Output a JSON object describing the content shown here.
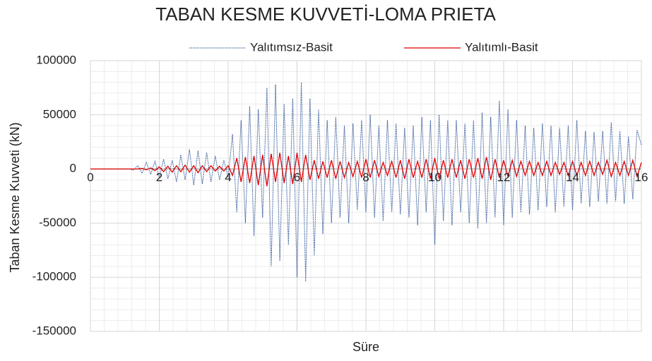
{
  "chart_data": {
    "type": "line",
    "title": "TABAN KESME KUVVETİ-LOMA PRIETA",
    "x_label": "Süre",
    "y_label": "Taban Kesme Kuvveti (kN)",
    "x": [
      0,
      0.125,
      0.25,
      0.375,
      0.5,
      0.625,
      0.75,
      0.875,
      1,
      1.125,
      1.25,
      1.375,
      1.5,
      1.625,
      1.75,
      1.875,
      2,
      2.125,
      2.25,
      2.375,
      2.5,
      2.625,
      2.75,
      2.875,
      3,
      3.125,
      3.25,
      3.375,
      3.5,
      3.625,
      3.75,
      3.875,
      4,
      4.125,
      4.25,
      4.375,
      4.5,
      4.625,
      4.75,
      4.875,
      5,
      5.125,
      5.25,
      5.375,
      5.5,
      5.625,
      5.75,
      5.875,
      6,
      6.125,
      6.25,
      6.375,
      6.5,
      6.625,
      6.75,
      6.875,
      7,
      7.125,
      7.25,
      7.375,
      7.5,
      7.625,
      7.75,
      7.875,
      8,
      8.125,
      8.25,
      8.375,
      8.5,
      8.625,
      8.75,
      8.875,
      9,
      9.125,
      9.25,
      9.375,
      9.5,
      9.625,
      9.75,
      9.875,
      10,
      10.125,
      10.25,
      10.375,
      10.5,
      10.625,
      10.75,
      10.875,
      11,
      11.125,
      11.25,
      11.375,
      11.5,
      11.625,
      11.75,
      11.875,
      12,
      12.125,
      12.25,
      12.375,
      12.5,
      12.625,
      12.75,
      12.875,
      13,
      13.125,
      13.25,
      13.375,
      13.5,
      13.625,
      13.75,
      13.875,
      14,
      14.125,
      14.25,
      14.375,
      14.5,
      14.625,
      14.75,
      14.875,
      15,
      15.125,
      15.25,
      15.375,
      15.5,
      15.625,
      15.75,
      15.875,
      16
    ],
    "series": [
      {
        "name": "Yalıtımsız-Basit",
        "color": "#2e5597",
        "dashed": true,
        "values": [
          0,
          0,
          0,
          0,
          0,
          0,
          0,
          0,
          0,
          0,
          -1000,
          3000,
          -4000,
          6000,
          -5000,
          7000,
          -8000,
          9000,
          -9000,
          8000,
          -12000,
          13000,
          -10000,
          18000,
          -15000,
          17000,
          -14000,
          15000,
          -12000,
          12000,
          -10000,
          8000,
          -8000,
          32000,
          -40000,
          45000,
          -50000,
          58000,
          -62000,
          55000,
          -45000,
          75000,
          -90000,
          78000,
          -85000,
          60000,
          -70000,
          65000,
          -100000,
          80000,
          -104000,
          65000,
          -80000,
          55000,
          -60000,
          45000,
          -50000,
          48000,
          -45000,
          40000,
          -50000,
          42000,
          -38000,
          45000,
          -40000,
          50000,
          -45000,
          40000,
          -48000,
          45000,
          -40000,
          42000,
          -42000,
          38000,
          -45000,
          40000,
          -52000,
          48000,
          -40000,
          45000,
          -70000,
          50000,
          -48000,
          45000,
          -52000,
          45000,
          -40000,
          42000,
          -50000,
          45000,
          -55000,
          52000,
          -50000,
          48000,
          -45000,
          63000,
          -52000,
          55000,
          -45000,
          45000,
          -40000,
          40000,
          -42000,
          38000,
          -38000,
          42000,
          -35000,
          40000,
          -40000,
          38000,
          -35000,
          40000,
          -38000,
          45000,
          -32000,
          35000,
          -35000,
          34000,
          -30000,
          35000,
          -32000,
          43000,
          -30000,
          35000,
          -32000,
          30000,
          -28000,
          36000,
          22000
        ]
      },
      {
        "name": "Yalıtımlı-Basit",
        "color": "#e00000",
        "dashed": false,
        "values": [
          0,
          0,
          0,
          0,
          0,
          0,
          0,
          0,
          0,
          0,
          0,
          0,
          500,
          -800,
          1000,
          -1500,
          2000,
          -2500,
          2500,
          -3000,
          3000,
          -2500,
          3500,
          -3000,
          3000,
          -3500,
          3000,
          -2500,
          3000,
          -2000,
          2500,
          -2000,
          3000,
          -6000,
          10000,
          -12000,
          11000,
          -13000,
          12000,
          -15000,
          13000,
          -16000,
          14000,
          -12000,
          15000,
          -13000,
          12000,
          -14000,
          15000,
          -12000,
          13000,
          -10000,
          8000,
          -9000,
          7000,
          -8000,
          8000,
          -9000,
          7000,
          -8000,
          6000,
          -7000,
          7000,
          -8000,
          9000,
          -8000,
          8000,
          -7000,
          6000,
          -6000,
          7000,
          -8000,
          8000,
          -9000,
          9000,
          -8000,
          7000,
          -8000,
          9000,
          -9000,
          10000,
          -9000,
          8000,
          -8000,
          9000,
          -8000,
          8000,
          -9000,
          9000,
          -8000,
          10000,
          -9000,
          11000,
          -10000,
          9000,
          -8000,
          8000,
          -7000,
          8000,
          -7000,
          7000,
          -6000,
          7000,
          -6000,
          6000,
          -6000,
          7000,
          -6000,
          6000,
          -5000,
          6000,
          -6000,
          7000,
          -6000,
          6000,
          -6000,
          7000,
          -6000,
          6000,
          -5000,
          8000,
          -7000,
          6000,
          -6000,
          7000,
          -6000,
          8000,
          -7000,
          6000
        ]
      }
    ],
    "xlim": [
      0,
      16
    ],
    "xticks": [
      0,
      2,
      4,
      6,
      8,
      10,
      12,
      14,
      16
    ],
    "ylim": [
      -150000,
      100000
    ],
    "yticks": [
      -150000,
      -100000,
      -50000,
      0,
      50000,
      100000
    ],
    "grid": true,
    "minor_grid": true,
    "legend": "top"
  }
}
